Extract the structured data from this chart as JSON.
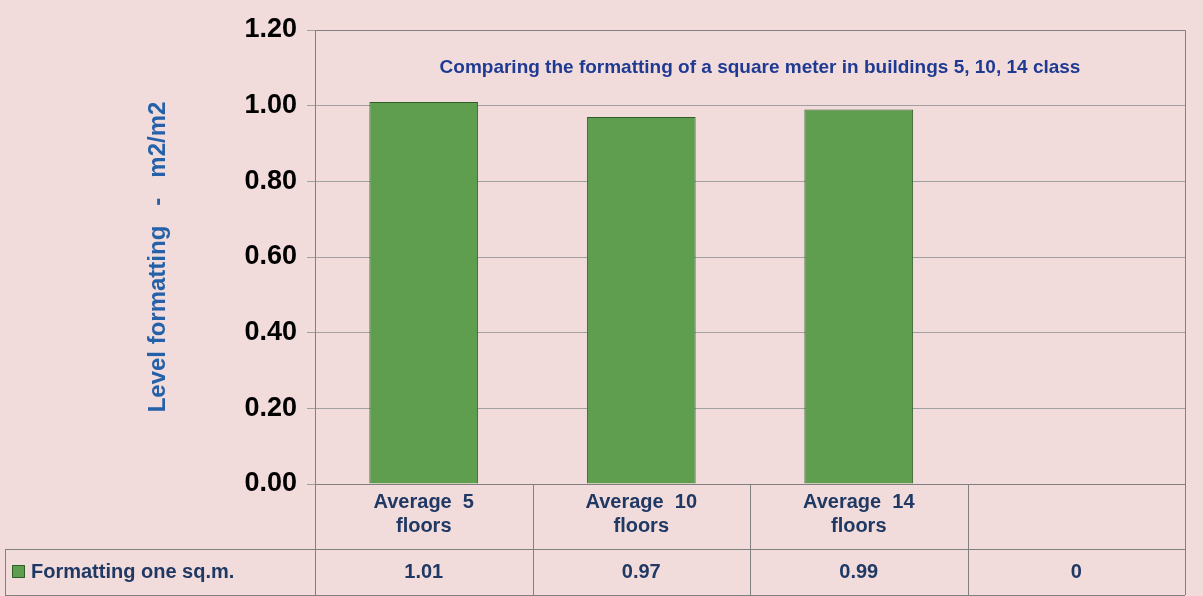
{
  "chart_data": {
    "type": "bar",
    "title": "Comparing the formatting of a square meter in buildings 5, 10, 14 class",
    "ylabel": "Level formatting   -   m2/m2",
    "categories": [
      "Average  5 floors",
      "Average  10 floors",
      "Average  14 floors",
      null
    ],
    "series": [
      {
        "name": "Formatting one sq.m.",
        "color": "#5f9e4f",
        "values": [
          1.01,
          0.97,
          0.99,
          0
        ]
      }
    ],
    "ylim": [
      0,
      1.2
    ],
    "yticks": [
      {
        "value": 0,
        "label": "0.00"
      },
      {
        "value": 0.2,
        "label": "0.20"
      },
      {
        "value": 0.4,
        "label": "0.40"
      },
      {
        "value": 0.6,
        "label": "0.60"
      },
      {
        "value": 0.8,
        "label": "0.80"
      },
      {
        "value": 1,
        "label": "1.00"
      },
      {
        "value": 1.2,
        "label": "1.20"
      }
    ],
    "grid": "y",
    "legend": "bottom",
    "data_labels": true
  }
}
